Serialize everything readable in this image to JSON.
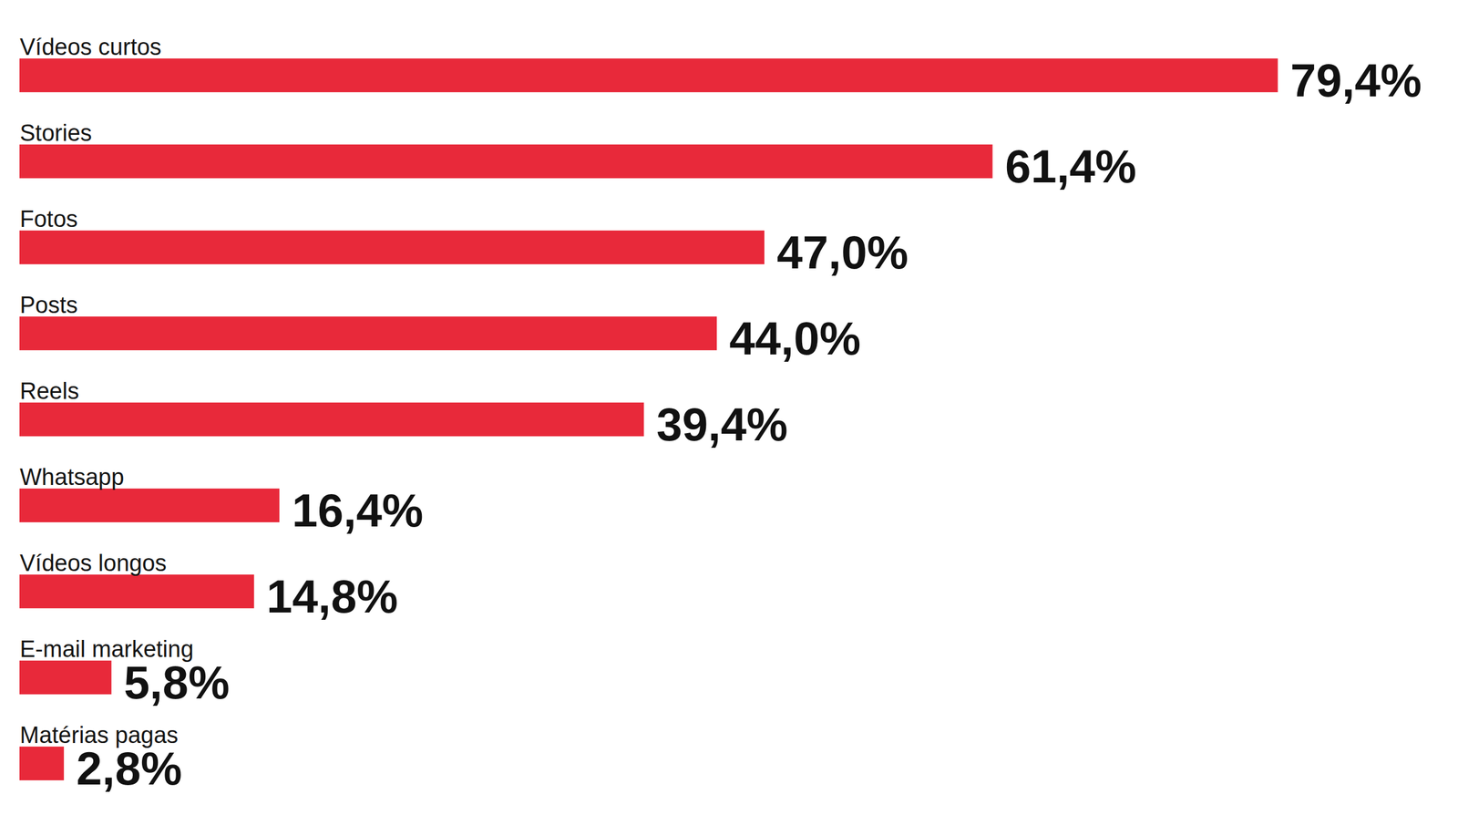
{
  "chart_data": {
    "type": "bar",
    "orientation": "horizontal",
    "categories": [
      "Vídeos curtos",
      "Stories",
      "Fotos",
      "Posts",
      "Reels",
      "Whatsapp",
      "Vídeos longos",
      "E-mail marketing",
      "Matérias pagas"
    ],
    "values": [
      79.4,
      61.4,
      47.0,
      44.0,
      39.4,
      16.4,
      14.8,
      5.8,
      2.8
    ],
    "value_labels": [
      "79,4%",
      "61,4%",
      "47,0%",
      "44,0%",
      "39,4%",
      "16,4%",
      "14,8%",
      "5,8%",
      "2,8%"
    ],
    "color": "#e8293a",
    "xlim": [
      0,
      90
    ],
    "xticks": [],
    "data_labels": true,
    "tick_labels": false
  }
}
